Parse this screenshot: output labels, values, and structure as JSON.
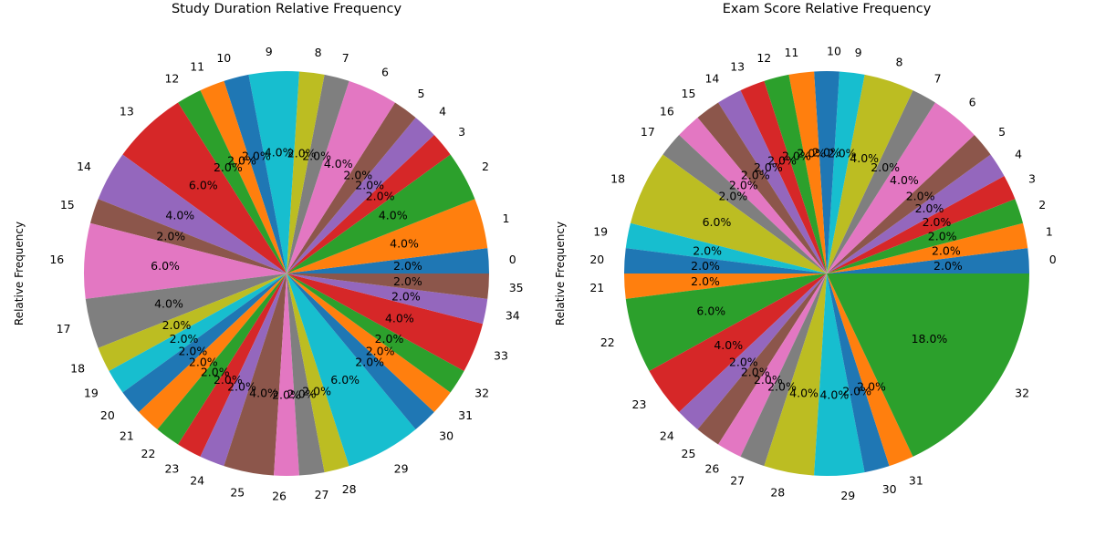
{
  "chart_data": [
    {
      "type": "pie",
      "title": "Study Duration Relative Frequency",
      "ylabel": "Relative Frequency",
      "categories": [
        "0",
        "1",
        "2",
        "3",
        "4",
        "5",
        "6",
        "7",
        "8",
        "9",
        "10",
        "11",
        "12",
        "13",
        "14",
        "15",
        "16",
        "17",
        "18",
        "19",
        "20",
        "21",
        "22",
        "23",
        "24",
        "25",
        "26",
        "27",
        "28",
        "29",
        "30",
        "31",
        "32",
        "33",
        "34",
        "35"
      ],
      "values": [
        2,
        4,
        4,
        2,
        2,
        2,
        4,
        2,
        2,
        4,
        2,
        2,
        2,
        6,
        4,
        2,
        6,
        4,
        2,
        2,
        2,
        2,
        2,
        2,
        2,
        4,
        2,
        2,
        2,
        6,
        2,
        2,
        2,
        4,
        2,
        2
      ],
      "value_labels": [
        "2.0%",
        "4.0%",
        "4.0%",
        "2.0%",
        "2.0%",
        "2.0%",
        "4.0%",
        "2.0%",
        "2.0%",
        "4.0%",
        "2.0%",
        "2.0%",
        "2.0%",
        "6.0%",
        "4.0%",
        "2.0%",
        "6.0%",
        "4.0%",
        "2.0%",
        "2.0%",
        "2.0%",
        "2.0%",
        "2.0%",
        "2.0%",
        "2.0%",
        "4.0%",
        "2.0%",
        "2.0%",
        "2.0%",
        "6.0%",
        "2.0%",
        "2.0%",
        "2.0%",
        "4.0%",
        "2.0%",
        "2.0%"
      ]
    },
    {
      "type": "pie",
      "title": "Exam Score Relative Frequency",
      "ylabel": "Relative Frequency",
      "categories": [
        "0",
        "1",
        "2",
        "3",
        "4",
        "5",
        "6",
        "7",
        "8",
        "9",
        "10",
        "11",
        "12",
        "13",
        "14",
        "15",
        "16",
        "17",
        "18",
        "19",
        "20",
        "21",
        "22",
        "23",
        "24",
        "25",
        "26",
        "27",
        "28",
        "29",
        "30",
        "31",
        "32"
      ],
      "values": [
        2,
        2,
        2,
        2,
        2,
        2,
        4,
        2,
        4,
        2,
        2,
        2,
        2,
        2,
        2,
        2,
        2,
        2,
        6,
        2,
        2,
        2,
        6,
        4,
        2,
        2,
        2,
        2,
        4,
        4,
        2,
        2,
        18
      ],
      "value_labels": [
        "2.0%",
        "2.0%",
        "2.0%",
        "2.0%",
        "2.0%",
        "2.0%",
        "4.0%",
        "2.0%",
        "4.0%",
        "2.0%",
        "2.0%",
        "2.0%",
        "2.0%",
        "2.0%",
        "2.0%",
        "2.0%",
        "2.0%",
        "2.0%",
        "6.0%",
        "2.0%",
        "2.0%",
        "2.0%",
        "6.0%",
        "4.0%",
        "2.0%",
        "2.0%",
        "2.0%",
        "2.0%",
        "4.0%",
        "4.0%",
        "2.0%",
        "2.0%",
        "18.0%"
      ]
    }
  ],
  "colors": [
    "#1f77b4",
    "#ff7f0e",
    "#2ca02c",
    "#d62728",
    "#9467bd",
    "#8c564b",
    "#e377c2",
    "#7f7f7f",
    "#bcbd22",
    "#17becf"
  ]
}
